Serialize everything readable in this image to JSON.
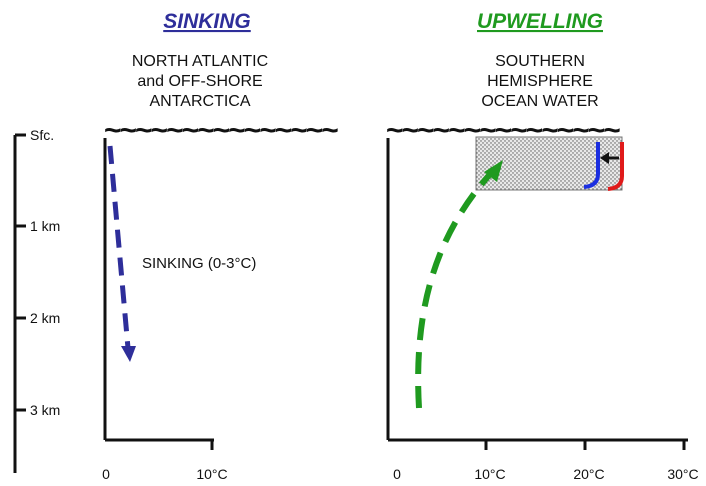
{
  "left_panel": {
    "title": "SINKING",
    "subtitle": [
      "NORTH ATLANTIC",
      "and OFF-SHORE",
      "ANTARCTICA"
    ],
    "annotation": "SINKING (0-3°C)",
    "x_ticks": [
      "0",
      "10°C"
    ]
  },
  "right_panel": {
    "title": "UPWELLING",
    "subtitle": [
      "SOUTHERN",
      "HEMISPHERE",
      "OCEAN WATER"
    ],
    "x_ticks": [
      "0",
      "10°C",
      "20°C",
      "30°C"
    ]
  },
  "depth_axis": {
    "ticks": [
      "Sfc.",
      "1 km",
      "2 km",
      "3 km"
    ]
  },
  "surface_waves": "~~~~~~~~~~~~~~~",
  "colors": {
    "sinking": "#2e2e9a",
    "upwelling": "#1f9a1f",
    "cold_line": "#1a2ee0",
    "warm_line": "#e01a1a",
    "axis": "#111111"
  }
}
